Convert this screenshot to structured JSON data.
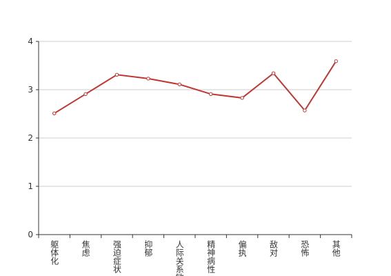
{
  "chart_data": {
    "type": "line",
    "categories": [
      "躯体化",
      "焦虑",
      "强迫症状",
      "抑郁",
      "人际关系敏感",
      "精神病性",
      "偏执",
      "敌对",
      "恐怖",
      "其他"
    ],
    "values": [
      2.51,
      2.91,
      3.31,
      3.23,
      3.11,
      2.91,
      2.83,
      3.34,
      2.57,
      3.59
    ],
    "color": "#c23531",
    "ylim": [
      0,
      4
    ],
    "yticks": [
      0,
      1,
      2,
      3,
      4
    ],
    "grid": true
  }
}
